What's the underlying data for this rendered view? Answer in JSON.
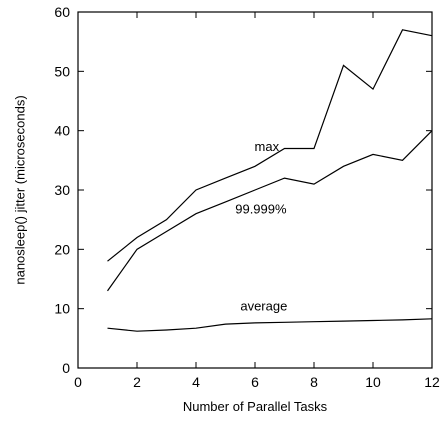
{
  "chart_data": {
    "type": "line",
    "title": "",
    "xlabel": "Number of Parallel Tasks",
    "ylabel": "nanosleep() jitter (microseconds)",
    "xlim": [
      0,
      12
    ],
    "ylim": [
      0,
      60
    ],
    "x_ticks": [
      0,
      2,
      4,
      6,
      8,
      10,
      12
    ],
    "y_ticks": [
      0,
      10,
      20,
      30,
      40,
      50,
      60
    ],
    "grid": false,
    "legend": "inline labels",
    "series": [
      {
        "name": "max",
        "x": [
          1,
          2,
          3,
          4,
          5,
          6,
          7,
          8,
          9,
          10,
          11,
          12
        ],
        "values": [
          18,
          22,
          25,
          30,
          32,
          34,
          37,
          37,
          51,
          47,
          57,
          56
        ]
      },
      {
        "name": "99.999%",
        "x": [
          1,
          2,
          3,
          4,
          5,
          6,
          7,
          8,
          9,
          10,
          11,
          12
        ],
        "values": [
          13,
          20,
          23,
          26,
          28,
          30,
          32,
          31,
          34,
          36,
          35,
          40
        ]
      },
      {
        "name": "average",
        "x": [
          1,
          2,
          3,
          4,
          5,
          6,
          7,
          8,
          9,
          10,
          11,
          12
        ],
        "values": [
          6.7,
          6.2,
          6.4,
          6.7,
          7.4,
          7.6,
          7.7,
          7.8,
          7.9,
          8.0,
          8.1,
          8.3
        ]
      }
    ],
    "colors": {
      "line": "#000000",
      "background": "#ffffff"
    }
  }
}
